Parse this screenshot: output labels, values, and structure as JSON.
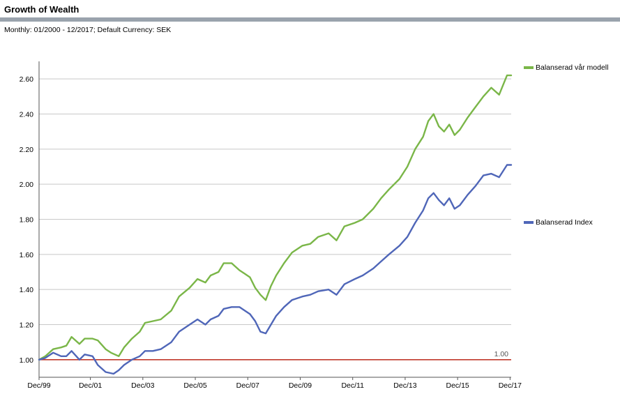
{
  "header": {
    "title": "Growth of Wealth",
    "subtitle": "Monthly: 01/2000 - 12/2017; Default Currency: SEK"
  },
  "chart_data": {
    "type": "line",
    "title": "Growth of Wealth",
    "subtitle": "Monthly: 01/2000 - 12/2017; Default Currency: SEK",
    "xlabel": "",
    "ylabel": "",
    "xlim": [
      1999.96,
      2017.96
    ],
    "ylim": [
      0.9,
      2.7
    ],
    "y_ticks": [
      "1.00",
      "1.20",
      "1.40",
      "1.60",
      "1.80",
      "2.00",
      "2.20",
      "2.40",
      "2.60"
    ],
    "x_ticks": [
      "Dec/99",
      "Dec/01",
      "Dec/03",
      "Dec/05",
      "Dec/07",
      "Dec/09",
      "Dec/11",
      "Dec/13",
      "Dec/15",
      "Dec/17"
    ],
    "grid": true,
    "legend_position": "right",
    "reference_line": {
      "value": 1.0,
      "label": "1.00",
      "color": "#c0392b"
    },
    "series": [
      {
        "name": "Balanserad vår modell",
        "color": "#7ab648",
        "points": [
          [
            1999.96,
            1.0
          ],
          [
            2000.2,
            1.02
          ],
          [
            2000.5,
            1.06
          ],
          [
            2000.8,
            1.07
          ],
          [
            2001.0,
            1.08
          ],
          [
            2001.2,
            1.13
          ],
          [
            2001.5,
            1.09
          ],
          [
            2001.7,
            1.12
          ],
          [
            2002.0,
            1.12
          ],
          [
            2002.2,
            1.11
          ],
          [
            2002.5,
            1.06
          ],
          [
            2002.7,
            1.04
          ],
          [
            2003.0,
            1.02
          ],
          [
            2003.2,
            1.07
          ],
          [
            2003.5,
            1.12
          ],
          [
            2003.8,
            1.16
          ],
          [
            2004.0,
            1.21
          ],
          [
            2004.3,
            1.22
          ],
          [
            2004.6,
            1.23
          ],
          [
            2005.0,
            1.28
          ],
          [
            2005.3,
            1.36
          ],
          [
            2005.7,
            1.41
          ],
          [
            2006.0,
            1.46
          ],
          [
            2006.3,
            1.44
          ],
          [
            2006.5,
            1.48
          ],
          [
            2006.8,
            1.5
          ],
          [
            2007.0,
            1.55
          ],
          [
            2007.3,
            1.55
          ],
          [
            2007.6,
            1.51
          ],
          [
            2007.8,
            1.49
          ],
          [
            2008.0,
            1.47
          ],
          [
            2008.2,
            1.41
          ],
          [
            2008.4,
            1.37
          ],
          [
            2008.6,
            1.34
          ],
          [
            2008.8,
            1.42
          ],
          [
            2009.0,
            1.48
          ],
          [
            2009.3,
            1.55
          ],
          [
            2009.6,
            1.61
          ],
          [
            2010.0,
            1.65
          ],
          [
            2010.3,
            1.66
          ],
          [
            2010.6,
            1.7
          ],
          [
            2011.0,
            1.72
          ],
          [
            2011.3,
            1.68
          ],
          [
            2011.6,
            1.76
          ],
          [
            2012.0,
            1.78
          ],
          [
            2012.3,
            1.8
          ],
          [
            2012.7,
            1.86
          ],
          [
            2013.0,
            1.92
          ],
          [
            2013.3,
            1.97
          ],
          [
            2013.7,
            2.03
          ],
          [
            2014.0,
            2.1
          ],
          [
            2014.3,
            2.2
          ],
          [
            2014.6,
            2.27
          ],
          [
            2014.8,
            2.36
          ],
          [
            2015.0,
            2.4
          ],
          [
            2015.2,
            2.33
          ],
          [
            2015.4,
            2.3
          ],
          [
            2015.6,
            2.34
          ],
          [
            2015.8,
            2.28
          ],
          [
            2016.0,
            2.31
          ],
          [
            2016.3,
            2.38
          ],
          [
            2016.6,
            2.44
          ],
          [
            2016.9,
            2.5
          ],
          [
            2017.2,
            2.55
          ],
          [
            2017.5,
            2.51
          ],
          [
            2017.8,
            2.62
          ],
          [
            2017.96,
            2.62
          ]
        ]
      },
      {
        "name": "Balanserad Index",
        "color": "#4f66b8",
        "points": [
          [
            1999.96,
            1.0
          ],
          [
            2000.2,
            1.01
          ],
          [
            2000.5,
            1.04
          ],
          [
            2000.8,
            1.02
          ],
          [
            2001.0,
            1.02
          ],
          [
            2001.2,
            1.05
          ],
          [
            2001.5,
            1.0
          ],
          [
            2001.7,
            1.03
          ],
          [
            2002.0,
            1.02
          ],
          [
            2002.2,
            0.97
          ],
          [
            2002.5,
            0.93
          ],
          [
            2002.8,
            0.92
          ],
          [
            2003.0,
            0.94
          ],
          [
            2003.2,
            0.97
          ],
          [
            2003.5,
            1.0
          ],
          [
            2003.8,
            1.02
          ],
          [
            2004.0,
            1.05
          ],
          [
            2004.3,
            1.05
          ],
          [
            2004.6,
            1.06
          ],
          [
            2005.0,
            1.1
          ],
          [
            2005.3,
            1.16
          ],
          [
            2005.7,
            1.2
          ],
          [
            2006.0,
            1.23
          ],
          [
            2006.3,
            1.2
          ],
          [
            2006.5,
            1.23
          ],
          [
            2006.8,
            1.25
          ],
          [
            2007.0,
            1.29
          ],
          [
            2007.3,
            1.3
          ],
          [
            2007.6,
            1.3
          ],
          [
            2007.8,
            1.28
          ],
          [
            2008.0,
            1.26
          ],
          [
            2008.2,
            1.22
          ],
          [
            2008.4,
            1.16
          ],
          [
            2008.6,
            1.15
          ],
          [
            2008.8,
            1.2
          ],
          [
            2009.0,
            1.25
          ],
          [
            2009.3,
            1.3
          ],
          [
            2009.6,
            1.34
          ],
          [
            2010.0,
            1.36
          ],
          [
            2010.3,
            1.37
          ],
          [
            2010.6,
            1.39
          ],
          [
            2011.0,
            1.4
          ],
          [
            2011.3,
            1.37
          ],
          [
            2011.6,
            1.43
          ],
          [
            2012.0,
            1.46
          ],
          [
            2012.3,
            1.48
          ],
          [
            2012.7,
            1.52
          ],
          [
            2013.0,
            1.56
          ],
          [
            2013.3,
            1.6
          ],
          [
            2013.7,
            1.65
          ],
          [
            2014.0,
            1.7
          ],
          [
            2014.3,
            1.78
          ],
          [
            2014.6,
            1.85
          ],
          [
            2014.8,
            1.92
          ],
          [
            2015.0,
            1.95
          ],
          [
            2015.2,
            1.91
          ],
          [
            2015.4,
            1.88
          ],
          [
            2015.6,
            1.92
          ],
          [
            2015.8,
            1.86
          ],
          [
            2016.0,
            1.88
          ],
          [
            2016.3,
            1.94
          ],
          [
            2016.6,
            1.99
          ],
          [
            2016.9,
            2.05
          ],
          [
            2017.2,
            2.06
          ],
          [
            2017.5,
            2.04
          ],
          [
            2017.8,
            2.11
          ],
          [
            2017.96,
            2.11
          ]
        ]
      }
    ]
  }
}
